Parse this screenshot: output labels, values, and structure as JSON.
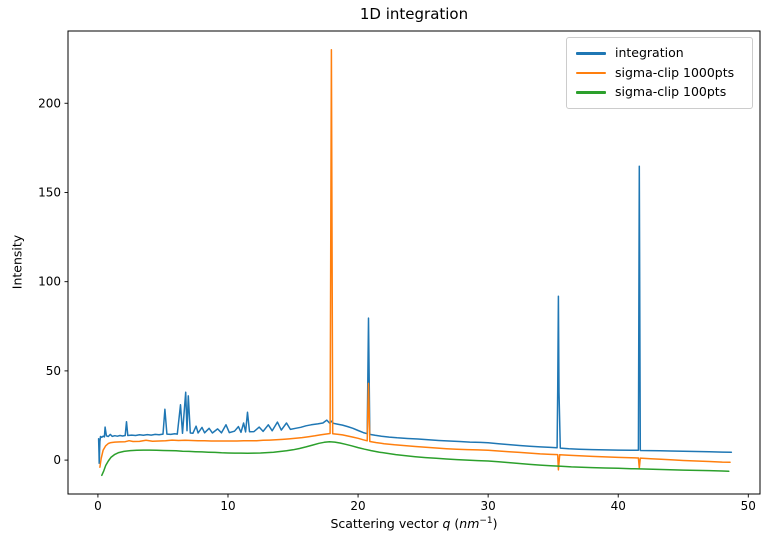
{
  "figure": {
    "title": "1D integration"
  },
  "chart_data": {
    "type": "line",
    "title": "1D integration",
    "xlabel": "Scattering vector q (nm⁻¹)",
    "xlabel_parts": {
      "pre": "Scattering vector ",
      "var": "q",
      "mid": " (",
      "unit": "nm",
      "sup": "−1",
      "post": ")"
    },
    "ylabel": "Intensity",
    "xlim": [
      -2.3,
      50.9
    ],
    "ylim": [
      -19,
      240.5
    ],
    "xticks": [
      0,
      10,
      20,
      30,
      40,
      50
    ],
    "yticks": [
      0,
      50,
      100,
      150,
      200
    ],
    "grid": false,
    "legend_position": "upper right",
    "spine_color": "#000000",
    "series": [
      {
        "name": "integration",
        "color": "#1f77b4",
        "points": [
          [
            0.05,
            12
          ],
          [
            0.08,
            4
          ],
          [
            0.1,
            -1.8
          ],
          [
            0.15,
            10.5
          ],
          [
            0.2,
            13.2
          ],
          [
            0.3,
            12.8
          ],
          [
            0.4,
            13.4
          ],
          [
            0.5,
            13.0
          ],
          [
            0.55,
            18.5
          ],
          [
            0.65,
            13.6
          ],
          [
            0.8,
            13.2
          ],
          [
            0.95,
            14.4
          ],
          [
            1.1,
            13.3
          ],
          [
            1.3,
            13.7
          ],
          [
            1.5,
            13.4
          ],
          [
            1.7,
            13.8
          ],
          [
            1.9,
            13.5
          ],
          [
            2.1,
            13.8
          ],
          [
            2.2,
            21.5
          ],
          [
            2.3,
            13.8
          ],
          [
            2.6,
            14.0
          ],
          [
            2.9,
            13.8
          ],
          [
            3.2,
            14.2
          ],
          [
            3.5,
            13.9
          ],
          [
            3.8,
            14.3
          ],
          [
            4.1,
            14.0
          ],
          [
            4.4,
            14.4
          ],
          [
            4.7,
            14.2
          ],
          [
            5.0,
            14.6
          ],
          [
            5.15,
            28.5
          ],
          [
            5.3,
            14.6
          ],
          [
            5.6,
            14.4
          ],
          [
            5.9,
            14.8
          ],
          [
            6.1,
            14.6
          ],
          [
            6.35,
            31.0
          ],
          [
            6.5,
            15.0
          ],
          [
            6.75,
            38.0
          ],
          [
            6.85,
            16.5
          ],
          [
            6.95,
            36.0
          ],
          [
            7.1,
            15.2
          ],
          [
            7.3,
            15.0
          ],
          [
            7.55,
            19.0
          ],
          [
            7.7,
            15.2
          ],
          [
            8.0,
            18.3
          ],
          [
            8.2,
            15.3
          ],
          [
            8.55,
            17.8
          ],
          [
            8.8,
            15.2
          ],
          [
            9.2,
            17.5
          ],
          [
            9.5,
            15.3
          ],
          [
            9.85,
            19.8
          ],
          [
            10.1,
            15.4
          ],
          [
            10.5,
            16.2
          ],
          [
            10.8,
            18.8
          ],
          [
            11.0,
            15.6
          ],
          [
            11.2,
            20.8
          ],
          [
            11.35,
            15.8
          ],
          [
            11.5,
            26.8
          ],
          [
            11.65,
            15.9
          ],
          [
            12.0,
            16.0
          ],
          [
            12.4,
            18.5
          ],
          [
            12.7,
            16.1
          ],
          [
            13.1,
            19.8
          ],
          [
            13.4,
            16.4
          ],
          [
            13.8,
            21.3
          ],
          [
            14.1,
            16.8
          ],
          [
            14.5,
            20.8
          ],
          [
            14.8,
            17.2
          ],
          [
            15.2,
            17.8
          ],
          [
            15.6,
            18.4
          ],
          [
            16.0,
            19.2
          ],
          [
            16.4,
            19.8
          ],
          [
            16.9,
            20.3
          ],
          [
            17.3,
            20.8
          ],
          [
            17.6,
            22.4
          ],
          [
            17.8,
            20.8
          ],
          [
            17.95,
            21.8
          ],
          [
            18.1,
            20.6
          ],
          [
            18.4,
            20.2
          ],
          [
            18.8,
            19.6
          ],
          [
            19.2,
            18.8
          ],
          [
            19.6,
            17.8
          ],
          [
            20.0,
            16.6
          ],
          [
            20.4,
            15.4
          ],
          [
            20.7,
            14.8
          ],
          [
            20.8,
            79.6
          ],
          [
            20.9,
            14.4
          ],
          [
            21.3,
            13.9
          ],
          [
            21.8,
            13.4
          ],
          [
            22.4,
            12.9
          ],
          [
            23.0,
            12.5
          ],
          [
            23.8,
            12.1
          ],
          [
            24.6,
            11.8
          ],
          [
            25.4,
            11.4
          ],
          [
            26.2,
            11.0
          ],
          [
            27.0,
            10.7
          ],
          [
            27.8,
            10.4
          ],
          [
            28.6,
            10.1
          ],
          [
            29.4,
            9.9
          ],
          [
            30.0,
            9.7
          ],
          [
            30.8,
            9.2
          ],
          [
            31.6,
            8.7
          ],
          [
            32.4,
            8.2
          ],
          [
            33.2,
            7.8
          ],
          [
            34.0,
            7.4
          ],
          [
            34.8,
            7.1
          ],
          [
            35.3,
            6.9
          ],
          [
            35.35,
            39.0
          ],
          [
            35.4,
            91.8
          ],
          [
            35.45,
            38.0
          ],
          [
            35.55,
            6.7
          ],
          [
            36.2,
            6.4
          ],
          [
            37.0,
            6.1
          ],
          [
            38.0,
            5.9
          ],
          [
            39.0,
            5.7
          ],
          [
            40.0,
            5.6
          ],
          [
            41.0,
            5.5
          ],
          [
            41.55,
            5.5
          ],
          [
            41.62,
            164.7
          ],
          [
            41.7,
            5.4
          ],
          [
            42.4,
            5.3
          ],
          [
            43.2,
            5.2
          ],
          [
            44.0,
            5.1
          ],
          [
            45.0,
            5.0
          ],
          [
            46.0,
            4.8
          ],
          [
            47.0,
            4.7
          ],
          [
            48.0,
            4.5
          ],
          [
            48.7,
            4.4
          ]
        ]
      },
      {
        "name": "sigma-clip 1000pts",
        "color": "#ff7f0e",
        "points": [
          [
            0.15,
            -4.0
          ],
          [
            0.25,
            1.0
          ],
          [
            0.4,
            5.5
          ],
          [
            0.6,
            8.0
          ],
          [
            0.8,
            9.3
          ],
          [
            1.0,
            9.8
          ],
          [
            1.3,
            10.1
          ],
          [
            1.7,
            10.2
          ],
          [
            2.1,
            10.3
          ],
          [
            2.4,
            10.9
          ],
          [
            2.7,
            10.4
          ],
          [
            3.2,
            10.5
          ],
          [
            3.7,
            11.1
          ],
          [
            4.2,
            10.6
          ],
          [
            4.7,
            10.7
          ],
          [
            5.2,
            10.8
          ],
          [
            5.7,
            11.2
          ],
          [
            6.2,
            11.0
          ],
          [
            6.7,
            11.1
          ],
          [
            7.2,
            11.0
          ],
          [
            7.7,
            10.9
          ],
          [
            8.2,
            10.8
          ],
          [
            8.7,
            10.7
          ],
          [
            9.2,
            10.7
          ],
          [
            9.7,
            10.7
          ],
          [
            10.2,
            10.7
          ],
          [
            10.7,
            10.7
          ],
          [
            11.2,
            10.8
          ],
          [
            11.7,
            10.8
          ],
          [
            12.2,
            10.9
          ],
          [
            12.7,
            11.1
          ],
          [
            13.2,
            11.2
          ],
          [
            13.7,
            11.4
          ],
          [
            14.2,
            11.6
          ],
          [
            14.7,
            11.9
          ],
          [
            15.2,
            12.2
          ],
          [
            15.7,
            12.6
          ],
          [
            16.2,
            13.1
          ],
          [
            16.7,
            13.6
          ],
          [
            17.1,
            14.1
          ],
          [
            17.5,
            14.6
          ],
          [
            17.85,
            14.9
          ],
          [
            17.95,
            230.0
          ],
          [
            18.05,
            14.8
          ],
          [
            18.4,
            14.5
          ],
          [
            18.8,
            14.1
          ],
          [
            19.2,
            13.5
          ],
          [
            19.6,
            12.9
          ],
          [
            20.0,
            12.2
          ],
          [
            20.4,
            11.4
          ],
          [
            20.7,
            10.8
          ],
          [
            20.8,
            43.0
          ],
          [
            20.9,
            10.4
          ],
          [
            21.4,
            9.8
          ],
          [
            22.0,
            9.2
          ],
          [
            22.8,
            8.6
          ],
          [
            23.6,
            8.1
          ],
          [
            24.4,
            7.6
          ],
          [
            25.2,
            7.2
          ],
          [
            26.0,
            6.8
          ],
          [
            26.8,
            6.4
          ],
          [
            27.6,
            6.1
          ],
          [
            28.4,
            5.9
          ],
          [
            29.2,
            5.7
          ],
          [
            30.0,
            5.5
          ],
          [
            30.8,
            5.1
          ],
          [
            31.6,
            4.7
          ],
          [
            32.4,
            4.3
          ],
          [
            33.2,
            3.9
          ],
          [
            34.0,
            3.5
          ],
          [
            34.8,
            3.2
          ],
          [
            35.35,
            3.1
          ],
          [
            35.4,
            -5.5
          ],
          [
            35.5,
            3.0
          ],
          [
            36.2,
            2.7
          ],
          [
            37.0,
            2.4
          ],
          [
            38.0,
            2.1
          ],
          [
            39.0,
            1.8
          ],
          [
            40.0,
            1.5
          ],
          [
            41.0,
            1.3
          ],
          [
            41.55,
            1.2
          ],
          [
            41.62,
            -4.5
          ],
          [
            41.7,
            1.1
          ],
          [
            42.5,
            0.8
          ],
          [
            43.3,
            0.5
          ],
          [
            44.2,
            0.1
          ],
          [
            45.0,
            -0.2
          ],
          [
            46.0,
            -0.5
          ],
          [
            47.0,
            -0.8
          ],
          [
            48.0,
            -1.1
          ],
          [
            48.6,
            -1.2
          ]
        ]
      },
      {
        "name": "sigma-clip 100pts",
        "color": "#2ca02c",
        "points": [
          [
            0.3,
            -8.5
          ],
          [
            0.45,
            -6.0
          ],
          [
            0.6,
            -3.0
          ],
          [
            0.8,
            -0.5
          ],
          [
            1.0,
            1.5
          ],
          [
            1.3,
            3.2
          ],
          [
            1.6,
            4.2
          ],
          [
            2.0,
            4.9
          ],
          [
            2.5,
            5.3
          ],
          [
            3.0,
            5.5
          ],
          [
            3.5,
            5.6
          ],
          [
            4.0,
            5.6
          ],
          [
            4.5,
            5.5
          ],
          [
            5.0,
            5.4
          ],
          [
            5.5,
            5.3
          ],
          [
            6.0,
            5.2
          ],
          [
            6.5,
            5.0
          ],
          [
            7.0,
            4.9
          ],
          [
            7.5,
            4.7
          ],
          [
            8.0,
            4.6
          ],
          [
            8.5,
            4.4
          ],
          [
            9.0,
            4.3
          ],
          [
            9.5,
            4.1
          ],
          [
            10.0,
            4.0
          ],
          [
            10.5,
            3.9
          ],
          [
            11.0,
            3.9
          ],
          [
            11.5,
            3.8
          ],
          [
            12.0,
            3.9
          ],
          [
            12.5,
            4.0
          ],
          [
            13.0,
            4.2
          ],
          [
            13.5,
            4.4
          ],
          [
            14.0,
            4.8
          ],
          [
            14.5,
            5.2
          ],
          [
            15.0,
            5.8
          ],
          [
            15.5,
            6.5
          ],
          [
            16.0,
            7.4
          ],
          [
            16.5,
            8.4
          ],
          [
            17.0,
            9.4
          ],
          [
            17.4,
            10.0
          ],
          [
            17.8,
            10.3
          ],
          [
            18.2,
            10.1
          ],
          [
            18.6,
            9.6
          ],
          [
            19.0,
            8.9
          ],
          [
            19.5,
            8.0
          ],
          [
            20.0,
            7.0
          ],
          [
            20.5,
            6.1
          ],
          [
            21.0,
            5.3
          ],
          [
            21.6,
            4.5
          ],
          [
            22.2,
            3.8
          ],
          [
            22.9,
            3.1
          ],
          [
            23.6,
            2.5
          ],
          [
            24.4,
            1.9
          ],
          [
            25.2,
            1.4
          ],
          [
            26.0,
            1.0
          ],
          [
            26.8,
            0.6
          ],
          [
            27.6,
            0.3
          ],
          [
            28.4,
            0.0
          ],
          [
            29.2,
            -0.3
          ],
          [
            30.0,
            -0.5
          ],
          [
            30.8,
            -0.9
          ],
          [
            31.6,
            -1.4
          ],
          [
            32.4,
            -1.9
          ],
          [
            33.2,
            -2.4
          ],
          [
            34.0,
            -2.8
          ],
          [
            34.8,
            -3.2
          ],
          [
            35.6,
            -3.5
          ],
          [
            36.4,
            -3.8
          ],
          [
            37.2,
            -4.0
          ],
          [
            38.0,
            -4.2
          ],
          [
            39.0,
            -4.4
          ],
          [
            40.0,
            -4.6
          ],
          [
            41.0,
            -4.8
          ],
          [
            42.0,
            -5.0
          ],
          [
            43.0,
            -5.2
          ],
          [
            44.0,
            -5.4
          ],
          [
            45.0,
            -5.6
          ],
          [
            46.0,
            -5.8
          ],
          [
            47.0,
            -5.9
          ],
          [
            48.0,
            -6.1
          ],
          [
            48.5,
            -6.2
          ]
        ]
      }
    ]
  }
}
